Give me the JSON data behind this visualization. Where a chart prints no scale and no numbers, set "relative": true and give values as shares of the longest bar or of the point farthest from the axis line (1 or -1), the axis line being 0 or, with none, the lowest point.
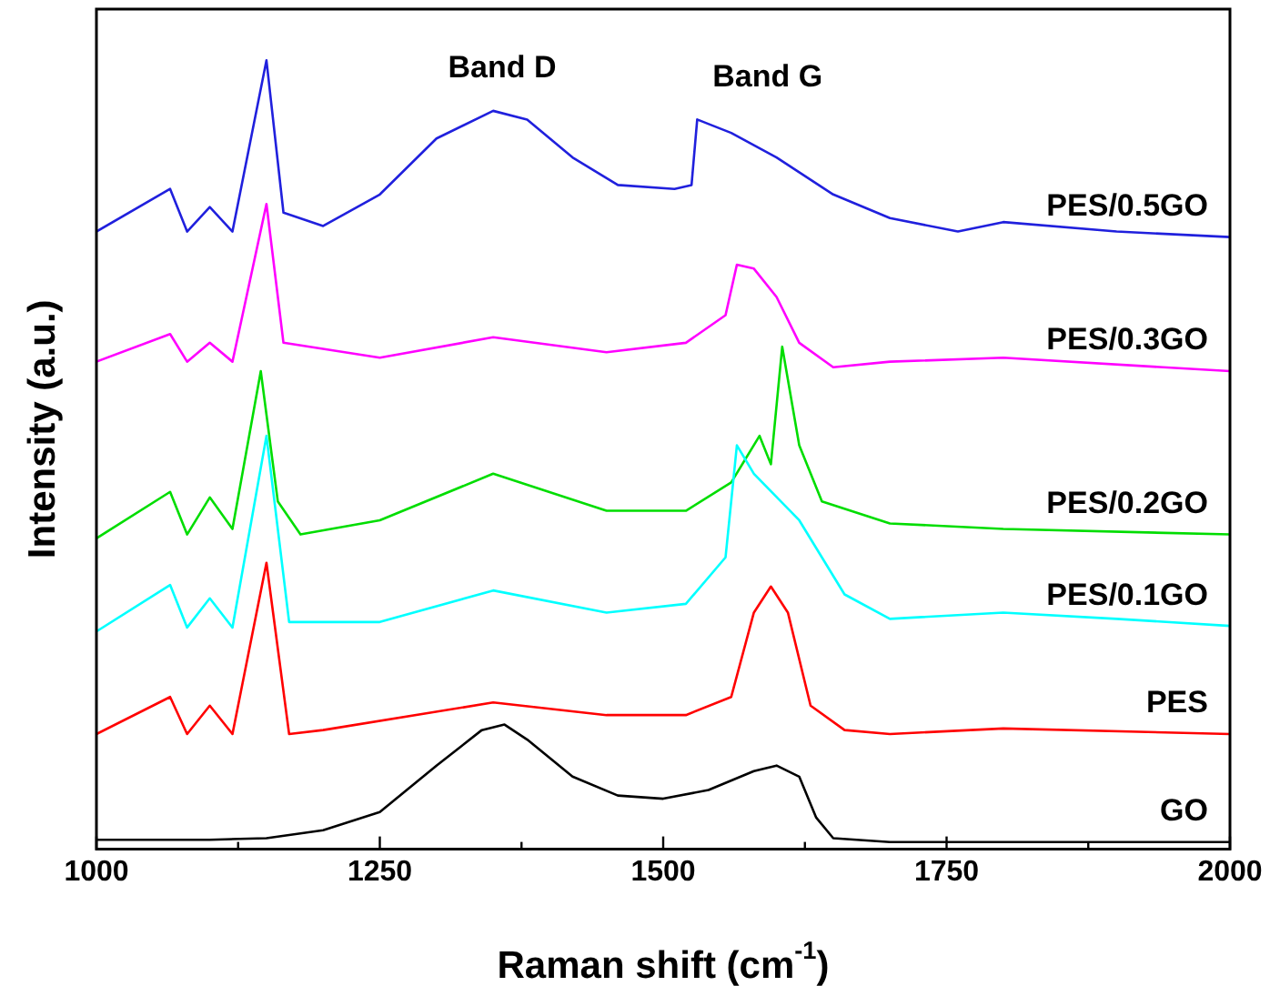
{
  "chart_data": {
    "type": "line",
    "xlabel": "Raman shift (cm$^{-1}$)",
    "ylabel": "Intensity (a.u.)",
    "relative": true,
    "xlim": [
      1000,
      2000
    ],
    "xticks": [
      1000,
      1250,
      1500,
      1750,
      2000
    ],
    "grid": false,
    "legend": false,
    "marker": "none",
    "line_style": "solid",
    "annotations": [
      "Band D",
      "Band G"
    ],
    "series": [
      {
        "name": "GO",
        "color": "#000000",
        "x": [
          1000,
          1100,
          1150,
          1200,
          1250,
          1300,
          1340,
          1360,
          1380,
          1420,
          1460,
          1500,
          1540,
          1580,
          1600,
          1620,
          1635,
          1650,
          1700,
          1800,
          1900,
          2000
        ],
        "values": [
          0.012,
          0.012,
          0.014,
          0.024,
          0.047,
          0.106,
          0.151,
          0.158,
          0.139,
          0.092,
          0.068,
          0.064,
          0.075,
          0.099,
          0.106,
          0.092,
          0.04,
          0.014,
          0.009,
          0.009,
          0.009,
          0.009
        ]
      },
      {
        "name": "PES",
        "color": "#ff0000",
        "x": [
          1000,
          1065,
          1080,
          1100,
          1120,
          1150,
          1170,
          1200,
          1350,
          1450,
          1520,
          1560,
          1580,
          1595,
          1610,
          1630,
          1660,
          1700,
          1800,
          2000
        ],
        "values": [
          0.146,
          0.193,
          0.146,
          0.182,
          0.146,
          0.363,
          0.146,
          0.151,
          0.186,
          0.17,
          0.17,
          0.193,
          0.3,
          0.333,
          0.3,
          0.182,
          0.151,
          0.146,
          0.153,
          0.146
        ]
      },
      {
        "name": "PES/0.1GO",
        "color": "#00ffff",
        "x": [
          1000,
          1065,
          1080,
          1100,
          1120,
          1150,
          1170,
          1250,
          1350,
          1450,
          1520,
          1555,
          1565,
          1580,
          1620,
          1660,
          1700,
          1800,
          1900,
          2000
        ],
        "values": [
          0.276,
          0.335,
          0.281,
          0.318,
          0.281,
          0.524,
          0.288,
          0.288,
          0.328,
          0.3,
          0.311,
          0.37,
          0.512,
          0.476,
          0.417,
          0.323,
          0.292,
          0.3,
          0.292,
          0.283
        ]
      },
      {
        "name": "PES/0.2GO",
        "color": "#00dd00",
        "x": [
          1000,
          1065,
          1080,
          1100,
          1120,
          1145,
          1160,
          1180,
          1250,
          1350,
          1450,
          1520,
          1560,
          1585,
          1595,
          1605,
          1620,
          1640,
          1700,
          1800,
          2000
        ],
        "values": [
          0.394,
          0.453,
          0.399,
          0.446,
          0.406,
          0.606,
          0.441,
          0.399,
          0.417,
          0.476,
          0.429,
          0.429,
          0.465,
          0.524,
          0.488,
          0.637,
          0.512,
          0.441,
          0.413,
          0.406,
          0.399
        ]
      },
      {
        "name": "PES/0.3GO",
        "color": "#ff00ff",
        "x": [
          1000,
          1065,
          1080,
          1100,
          1120,
          1150,
          1165,
          1250,
          1350,
          1450,
          1520,
          1555,
          1565,
          1580,
          1600,
          1620,
          1650,
          1700,
          1800,
          2000
        ],
        "values": [
          0.618,
          0.653,
          0.618,
          0.642,
          0.618,
          0.818,
          0.642,
          0.623,
          0.649,
          0.63,
          0.642,
          0.677,
          0.741,
          0.736,
          0.7,
          0.642,
          0.611,
          0.618,
          0.623,
          0.606
        ]
      },
      {
        "name": "PES/0.5GO",
        "color": "#2020dd",
        "x": [
          1000,
          1065,
          1080,
          1100,
          1120,
          1150,
          1165,
          1200,
          1250,
          1300,
          1350,
          1380,
          1420,
          1460,
          1510,
          1525,
          1530,
          1560,
          1600,
          1650,
          1700,
          1760,
          1800,
          1900,
          2000
        ],
        "values": [
          0.783,
          0.837,
          0.783,
          0.814,
          0.783,
          1.0,
          0.807,
          0.79,
          0.83,
          0.901,
          0.936,
          0.925,
          0.877,
          0.842,
          0.837,
          0.842,
          0.925,
          0.908,
          0.877,
          0.83,
          0.8,
          0.783,
          0.795,
          0.783,
          0.776
        ]
      }
    ]
  }
}
